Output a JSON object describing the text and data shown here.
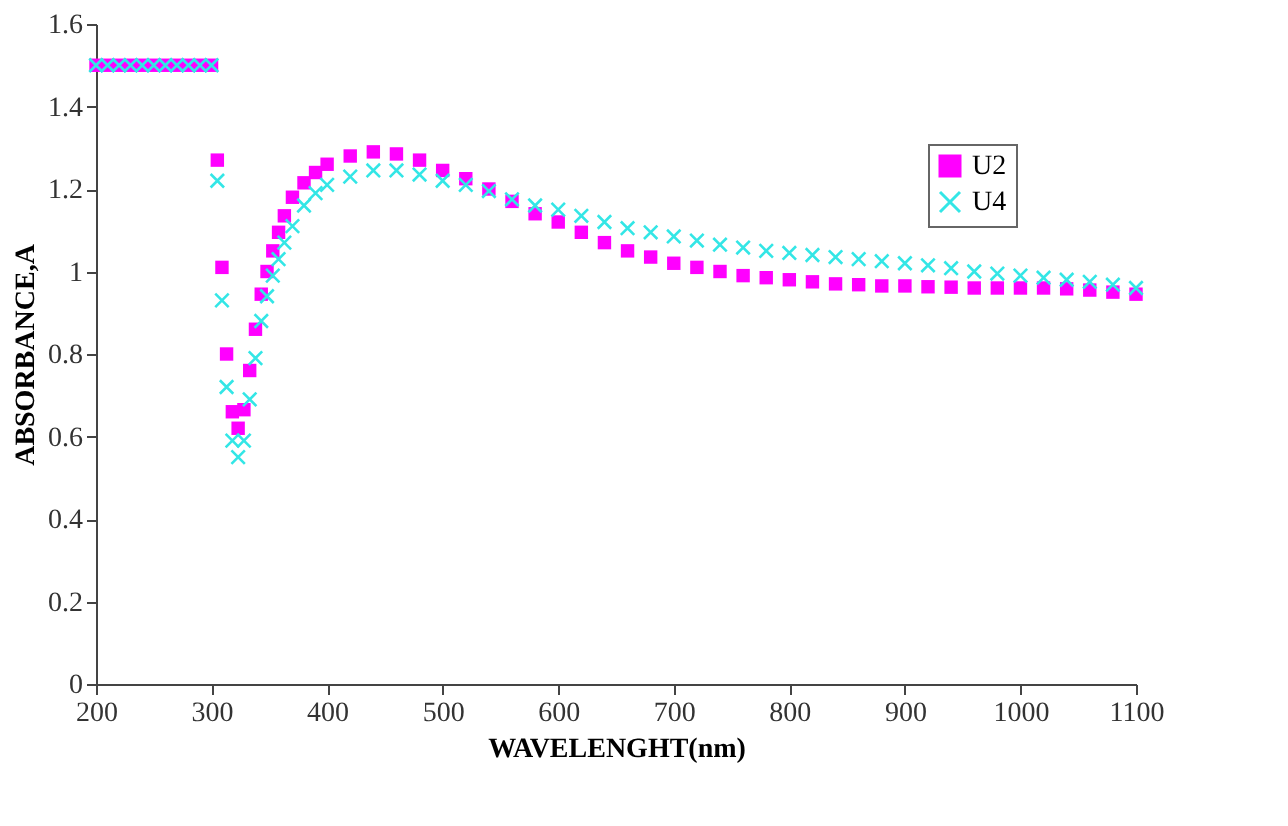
{
  "chart_data": {
    "type": "scatter",
    "xlabel": "WAVELENGHT(nm)",
    "ylabel": "ABSORBANCE,A",
    "x": [
      200,
      210,
      220,
      230,
      240,
      250,
      260,
      270,
      280,
      290,
      300,
      305,
      309,
      313,
      318,
      323,
      328,
      333,
      338,
      343,
      348,
      353,
      358,
      363,
      370,
      380,
      390,
      400,
      420,
      440,
      460,
      480,
      500,
      520,
      540,
      560,
      580,
      600,
      620,
      640,
      660,
      680,
      700,
      720,
      740,
      760,
      780,
      800,
      820,
      840,
      860,
      880,
      900,
      920,
      940,
      960,
      980,
      1000,
      1020,
      1040,
      1060,
      1080,
      1100
    ],
    "series": [
      {
        "name": "U2",
        "color": "#ff00ff",
        "marker": "square",
        "values": [
          1.5,
          1.5,
          1.5,
          1.5,
          1.5,
          1.5,
          1.5,
          1.5,
          1.5,
          1.5,
          1.5,
          1.27,
          1.01,
          0.8,
          0.66,
          0.62,
          0.665,
          0.76,
          0.86,
          0.945,
          1.0,
          1.05,
          1.095,
          1.135,
          1.18,
          1.215,
          1.24,
          1.26,
          1.28,
          1.29,
          1.285,
          1.27,
          1.245,
          1.225,
          1.2,
          1.17,
          1.14,
          1.12,
          1.095,
          1.07,
          1.05,
          1.035,
          1.02,
          1.01,
          1.0,
          0.99,
          0.985,
          0.98,
          0.975,
          0.97,
          0.968,
          0.965,
          0.965,
          0.963,
          0.962,
          0.96,
          0.96,
          0.96,
          0.96,
          0.958,
          0.955,
          0.95,
          0.945
        ]
      },
      {
        "name": "U4",
        "color": "#33e6e6",
        "marker": "cross",
        "values": [
          1.5,
          1.5,
          1.5,
          1.5,
          1.5,
          1.5,
          1.5,
          1.5,
          1.5,
          1.5,
          1.5,
          1.22,
          0.93,
          0.72,
          0.59,
          0.55,
          0.59,
          0.69,
          0.79,
          0.88,
          0.94,
          0.99,
          1.03,
          1.07,
          1.11,
          1.16,
          1.19,
          1.21,
          1.23,
          1.245,
          1.245,
          1.235,
          1.22,
          1.21,
          1.195,
          1.175,
          1.16,
          1.15,
          1.135,
          1.12,
          1.105,
          1.095,
          1.085,
          1.075,
          1.065,
          1.058,
          1.05,
          1.045,
          1.04,
          1.035,
          1.03,
          1.025,
          1.02,
          1.015,
          1.008,
          1.0,
          0.995,
          0.99,
          0.985,
          0.98,
          0.975,
          0.968,
          0.96
        ]
      }
    ],
    "xlim": [
      200,
      1100
    ],
    "xticks": [
      200,
      300,
      400,
      500,
      600,
      700,
      800,
      900,
      1000,
      1100
    ],
    "ylim": [
      0,
      1.6
    ],
    "yticks": [
      0,
      0.2,
      0.4,
      0.6,
      0.8,
      1,
      1.2,
      1.4,
      1.6
    ],
    "grid": false,
    "legend": "top right"
  }
}
